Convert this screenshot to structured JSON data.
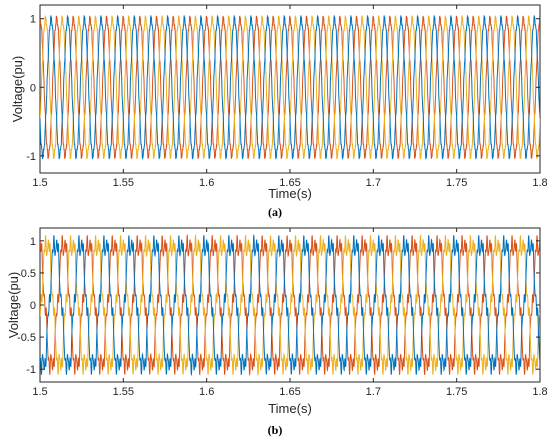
{
  "chart_data": [
    {
      "type": "line",
      "caption": "(a)",
      "xlabel": "Time(s)",
      "ylabel": "Voltage(pu)",
      "xlim": [
        1.5,
        1.8
      ],
      "ylim": [
        -1.25,
        1.2
      ],
      "xticks": [
        "1.5",
        "1.55",
        "1.6",
        "1.65",
        "1.7",
        "1.75",
        "1.8"
      ],
      "yticks": [
        "-1",
        "0",
        "1"
      ],
      "grid": false,
      "waveform": {
        "frequency_hz": 100,
        "amplitude_pu": 1.0,
        "distortion": "low"
      },
      "series": [
        {
          "phase_deg": 90,
          "color": "#D95319"
        },
        {
          "phase_deg": -30,
          "color": "#EDB120"
        },
        {
          "phase_deg": 210,
          "color": "#0072BD"
        }
      ]
    },
    {
      "type": "line",
      "caption": "(b)",
      "xlabel": "Time(s)",
      "ylabel": "Voltage(pu)",
      "xlim": [
        1.5,
        1.8
      ],
      "ylim": [
        -1.2,
        1.2
      ],
      "xticks": [
        "1.5",
        "1.55",
        "1.6",
        "1.65",
        "1.7",
        "1.75",
        "1.8"
      ],
      "yticks": [
        "-1",
        "-0.5",
        "0",
        "0.5",
        "1"
      ],
      "grid": false,
      "waveform": {
        "frequency_hz": 66.7,
        "amplitude_pu": 1.0,
        "distortion": "high"
      },
      "series": [
        {
          "phase_deg": 90,
          "color": "#D95319"
        },
        {
          "phase_deg": -30,
          "color": "#EDB120"
        },
        {
          "phase_deg": 210,
          "color": "#0072BD"
        }
      ]
    }
  ]
}
